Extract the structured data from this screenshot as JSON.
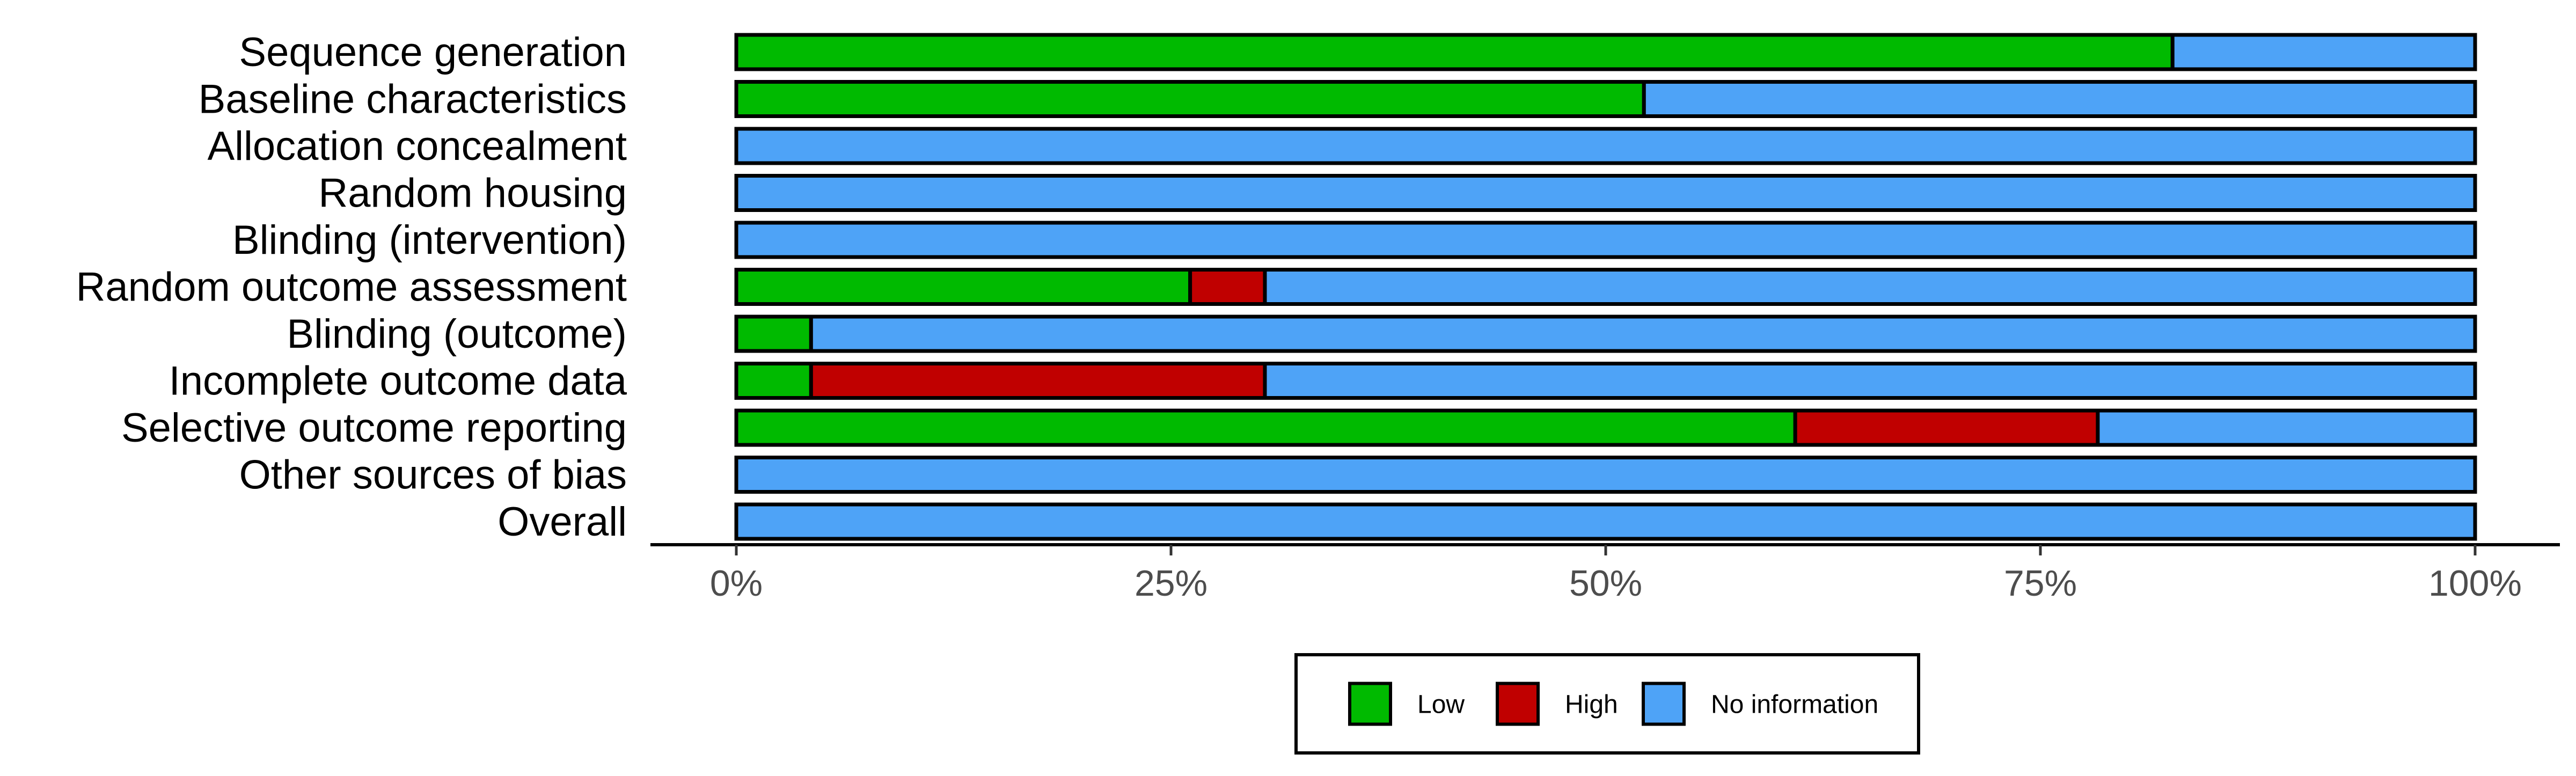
{
  "chart_data": {
    "type": "bar",
    "orientation": "horizontal",
    "stacked": true,
    "categories": [
      "Sequence generation",
      "Baseline characteristics",
      "Allocation concealment",
      "Random housing",
      "Blinding (intervention)",
      "Random outcome assessment",
      "Blinding (outcome)",
      "Incomplete outcome data",
      "Selective outcome reporting",
      "Other sources of bias",
      "Overall"
    ],
    "series": [
      {
        "name": "Low",
        "color": "#00BA00",
        "values": [
          82.6,
          52.2,
          0,
          0,
          0,
          26.1,
          4.3,
          4.3,
          60.9,
          0,
          0
        ]
      },
      {
        "name": "High",
        "color": "#C00000",
        "values": [
          0,
          0,
          0,
          0,
          0,
          4.3,
          0,
          26.1,
          17.4,
          0,
          0
        ]
      },
      {
        "name": "No information",
        "color": "#4EA3F7",
        "values": [
          17.4,
          47.8,
          100,
          100,
          100,
          69.6,
          95.7,
          69.6,
          21.7,
          100,
          100
        ]
      }
    ],
    "x_ticks": [
      "0%",
      "25%",
      "50%",
      "75%",
      "100%"
    ],
    "xlim": [
      0,
      100
    ],
    "grid": false,
    "legend": {
      "position": "bottom",
      "items": [
        "Low",
        "High",
        "No information"
      ]
    }
  }
}
